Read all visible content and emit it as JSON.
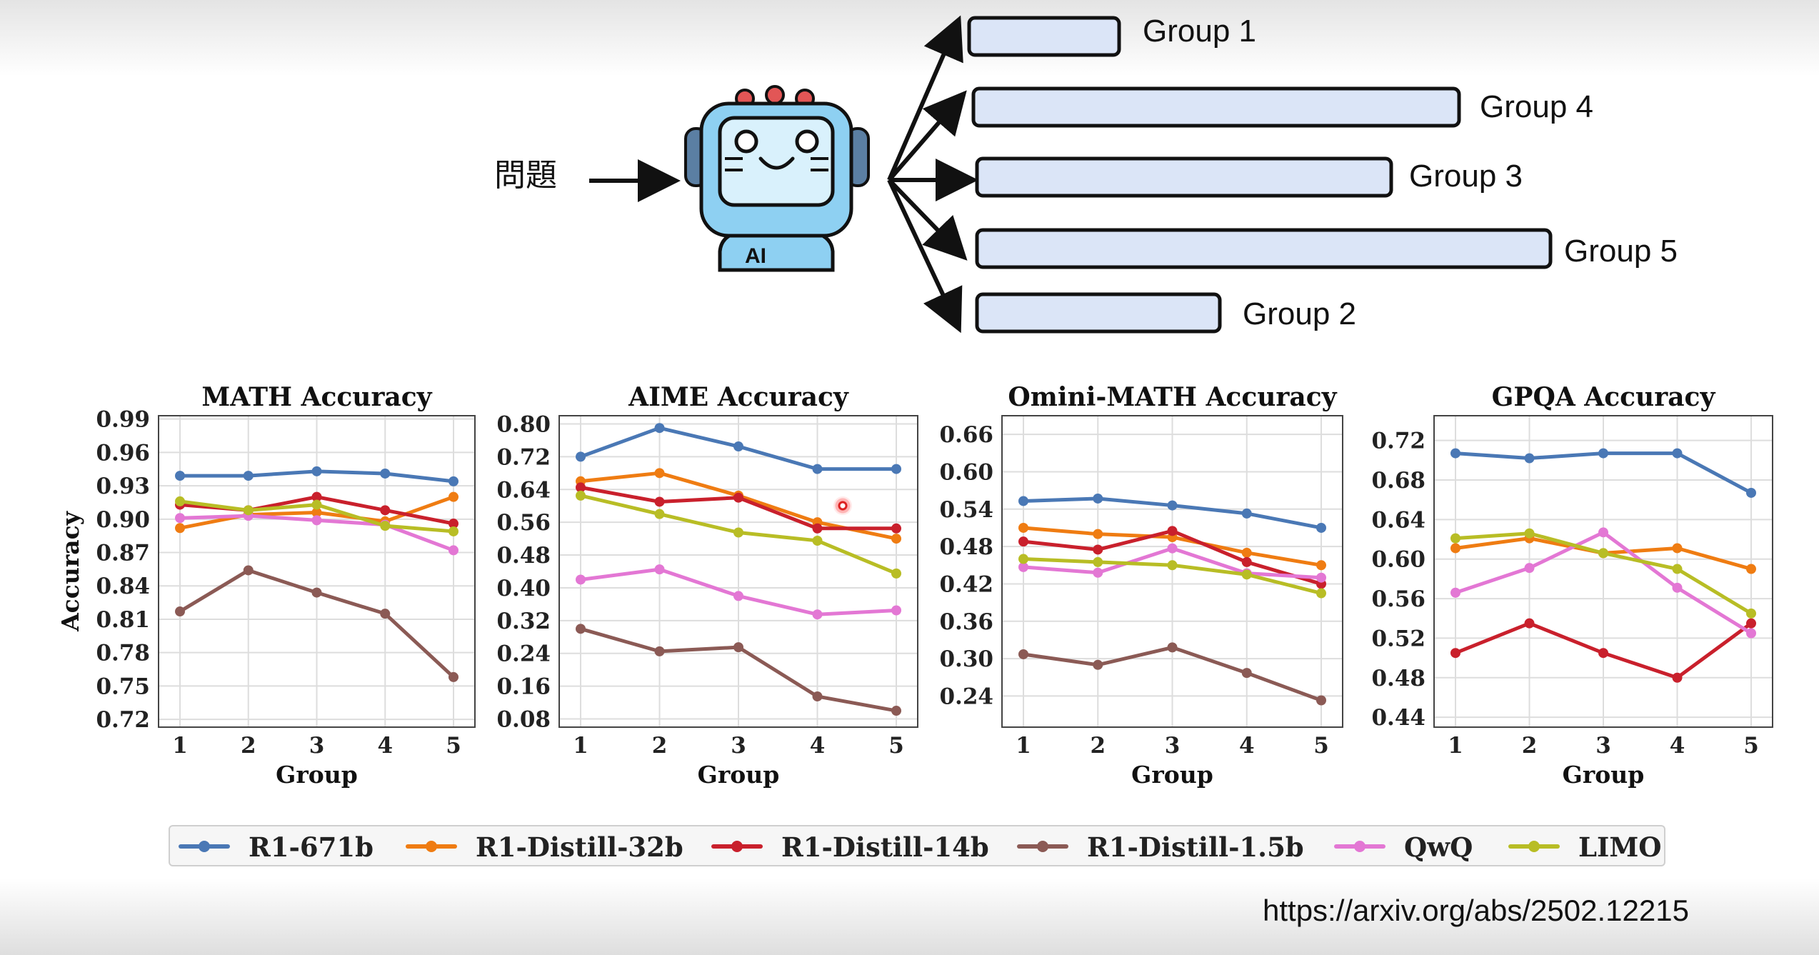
{
  "diagram": {
    "question_label": "問題",
    "robot_badge": "AI",
    "groups": [
      {
        "label": "Group 1",
        "length": 0.26
      },
      {
        "label": "Group 4",
        "length": 0.84
      },
      {
        "label": "Group 3",
        "length": 0.72
      },
      {
        "label": "Group 5",
        "length": 1.0
      },
      {
        "label": "Group 2",
        "length": 0.42
      }
    ]
  },
  "colors": {
    "R1-671b": "#4a78b5",
    "R1-Distill-32b": "#ef7c12",
    "R1-Distill-14b": "#c9202c",
    "R1-Distill-1.5b": "#8b5a55",
    "QwQ": "#e377d4",
    "LIMO": "#b8bd25",
    "group_box_fill": "#dbe5f7",
    "robot_face": "#8ed0f2"
  },
  "legend": {
    "items": [
      "R1-671b",
      "R1-Distill-32b",
      "R1-Distill-14b",
      "R1-Distill-1.5b",
      "QwQ",
      "LIMO"
    ]
  },
  "chart_data": [
    {
      "type": "line",
      "title": "MATH Accuracy",
      "xlabel": "Group",
      "ylabel": "Accuracy",
      "x": [
        1,
        2,
        3,
        4,
        5
      ],
      "yticks": [
        0.72,
        0.75,
        0.78,
        0.81,
        0.84,
        0.87,
        0.9,
        0.93,
        0.96,
        0.99
      ],
      "ylim": [
        0.713,
        0.993
      ],
      "grid": true,
      "series": [
        {
          "name": "R1-671b",
          "values": [
            0.939,
            0.939,
            0.943,
            0.941,
            0.934
          ]
        },
        {
          "name": "R1-Distill-32b",
          "values": [
            0.892,
            0.904,
            0.906,
            0.898,
            0.92
          ]
        },
        {
          "name": "R1-Distill-14b",
          "values": [
            0.913,
            0.908,
            0.92,
            0.908,
            0.896
          ]
        },
        {
          "name": "R1-Distill-1.5b",
          "values": [
            0.817,
            0.854,
            0.834,
            0.815,
            0.758
          ]
        },
        {
          "name": "QwQ",
          "values": [
            0.901,
            0.903,
            0.899,
            0.895,
            0.872
          ]
        },
        {
          "name": "LIMO",
          "values": [
            0.916,
            0.908,
            0.913,
            0.894,
            0.889
          ]
        }
      ]
    },
    {
      "type": "line",
      "title": "AIME Accuracy",
      "xlabel": "Group",
      "ylabel": "",
      "x": [
        1,
        2,
        3,
        4,
        5
      ],
      "yticks": [
        0.08,
        0.16,
        0.24,
        0.32,
        0.4,
        0.48,
        0.56,
        0.64,
        0.72,
        0.8
      ],
      "ylim": [
        0.06,
        0.82
      ],
      "grid": true,
      "series": [
        {
          "name": "R1-671b",
          "values": [
            0.72,
            0.79,
            0.745,
            0.69,
            0.69
          ]
        },
        {
          "name": "R1-Distill-32b",
          "values": [
            0.66,
            0.68,
            0.625,
            0.56,
            0.52
          ]
        },
        {
          "name": "R1-Distill-14b",
          "values": [
            0.645,
            0.61,
            0.62,
            0.545,
            0.545
          ]
        },
        {
          "name": "R1-Distill-1.5b",
          "values": [
            0.3,
            0.245,
            0.255,
            0.135,
            0.1
          ]
        },
        {
          "name": "QwQ",
          "values": [
            0.42,
            0.445,
            0.38,
            0.335,
            0.345
          ]
        },
        {
          "name": "LIMO",
          "values": [
            0.625,
            0.58,
            0.535,
            0.515,
            0.435
          ]
        }
      ]
    },
    {
      "type": "line",
      "title": "Omini-MATH Accuracy",
      "xlabel": "Group",
      "ylabel": "",
      "x": [
        1,
        2,
        3,
        4,
        5
      ],
      "yticks": [
        0.24,
        0.3,
        0.36,
        0.42,
        0.48,
        0.54,
        0.6,
        0.66
      ],
      "ylim": [
        0.19,
        0.69
      ],
      "grid": true,
      "series": [
        {
          "name": "R1-671b",
          "values": [
            0.553,
            0.557,
            0.546,
            0.533,
            0.51
          ]
        },
        {
          "name": "R1-Distill-32b",
          "values": [
            0.51,
            0.5,
            0.495,
            0.47,
            0.45
          ]
        },
        {
          "name": "R1-Distill-14b",
          "values": [
            0.488,
            0.475,
            0.505,
            0.455,
            0.42
          ]
        },
        {
          "name": "R1-Distill-1.5b",
          "values": [
            0.307,
            0.29,
            0.318,
            0.277,
            0.233
          ]
        },
        {
          "name": "QwQ",
          "values": [
            0.447,
            0.438,
            0.477,
            0.437,
            0.43
          ]
        },
        {
          "name": "LIMO",
          "values": [
            0.46,
            0.455,
            0.45,
            0.435,
            0.405
          ]
        }
      ]
    },
    {
      "type": "line",
      "title": "GPQA Accuracy",
      "xlabel": "Group",
      "ylabel": "",
      "x": [
        1,
        2,
        3,
        4,
        5
      ],
      "yticks": [
        0.44,
        0.48,
        0.52,
        0.56,
        0.6,
        0.64,
        0.68,
        0.72
      ],
      "ylim": [
        0.43,
        0.745
      ],
      "grid": true,
      "series": [
        {
          "name": "R1-671b",
          "values": [
            0.707,
            0.702,
            0.707,
            0.707,
            0.667
          ]
        },
        {
          "name": "R1-Distill-32b",
          "values": [
            0.611,
            0.621,
            0.606,
            0.611,
            0.59
          ]
        },
        {
          "name": "R1-Distill-14b",
          "values": [
            0.505,
            0.535,
            0.505,
            0.48,
            0.535
          ]
        },
        {
          "name": "QwQ",
          "values": [
            0.566,
            0.591,
            0.627,
            0.571,
            0.525
          ]
        },
        {
          "name": "LIMO",
          "values": [
            0.621,
            0.626,
            0.606,
            0.59,
            0.545
          ]
        }
      ]
    }
  ],
  "source": {
    "url": "https://arxiv.org/abs/2502.12215"
  }
}
